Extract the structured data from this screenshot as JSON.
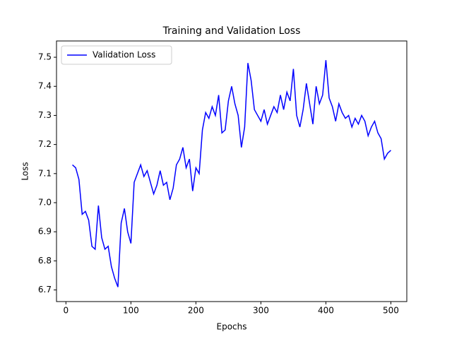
{
  "chart_data": {
    "type": "line",
    "title": "Training and Validation Loss",
    "x_label": "Epochs",
    "y_label": "Loss",
    "x": [
      10,
      15,
      20,
      25,
      30,
      35,
      40,
      45,
      50,
      55,
      60,
      65,
      70,
      75,
      80,
      85,
      90,
      95,
      100,
      105,
      110,
      115,
      120,
      125,
      130,
      135,
      140,
      145,
      150,
      155,
      160,
      165,
      170,
      175,
      180,
      185,
      190,
      195,
      200,
      205,
      210,
      215,
      220,
      225,
      230,
      235,
      240,
      245,
      250,
      255,
      260,
      265,
      270,
      275,
      280,
      285,
      290,
      295,
      300,
      305,
      310,
      315,
      320,
      325,
      330,
      335,
      340,
      345,
      350,
      355,
      360,
      365,
      370,
      375,
      380,
      385,
      390,
      395,
      400,
      405,
      410,
      415,
      420,
      425,
      430,
      435,
      440,
      445,
      450,
      455,
      460,
      465,
      470,
      475,
      480,
      485,
      490,
      495,
      500
    ],
    "series": [
      {
        "name": "Validation Loss",
        "color": "#0000ff",
        "values": [
          7.13,
          7.12,
          7.08,
          6.96,
          6.97,
          6.94,
          6.85,
          6.84,
          6.99,
          6.88,
          6.84,
          6.85,
          6.78,
          6.74,
          6.71,
          6.93,
          6.98,
          6.9,
          6.86,
          7.07,
          7.1,
          7.13,
          7.09,
          7.11,
          7.07,
          7.03,
          7.06,
          7.11,
          7.06,
          7.07,
          7.01,
          7.05,
          7.13,
          7.15,
          7.19,
          7.12,
          7.15,
          7.04,
          7.12,
          7.1,
          7.25,
          7.31,
          7.29,
          7.33,
          7.3,
          7.37,
          7.24,
          7.25,
          7.35,
          7.4,
          7.34,
          7.3,
          7.19,
          7.26,
          7.48,
          7.42,
          7.32,
          7.3,
          7.28,
          7.32,
          7.27,
          7.3,
          7.33,
          7.31,
          7.37,
          7.32,
          7.38,
          7.35,
          7.46,
          7.3,
          7.26,
          7.32,
          7.41,
          7.34,
          7.27,
          7.4,
          7.34,
          7.37,
          7.49,
          7.36,
          7.33,
          7.28,
          7.34,
          7.31,
          7.29,
          7.3,
          7.26,
          7.29,
          7.27,
          7.3,
          7.28,
          7.23,
          7.26,
          7.28,
          7.24,
          7.22,
          7.15,
          7.17,
          7.18
        ]
      }
    ],
    "xlim": [
      -14.5,
      524.5
    ],
    "ylim": [
      6.66,
      7.556
    ],
    "xticks": [
      0,
      100,
      200,
      300,
      400,
      500
    ],
    "yticks": [
      6.7,
      6.8,
      6.9,
      {
        "value": 7,
        "label": "7.0"
      },
      7.1,
      7.2,
      7.3,
      7.4,
      7.5
    ],
    "legend": "upper left"
  }
}
